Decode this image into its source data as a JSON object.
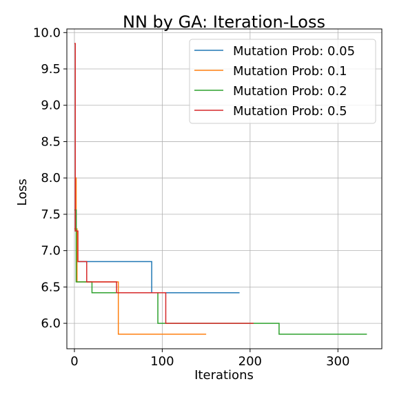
{
  "chart_data": {
    "type": "line",
    "title": "NN by GA: Iteration-Loss",
    "xlabel": "Iterations",
    "ylabel": "Loss",
    "xlim": [
      -8.6,
      350
    ],
    "ylim": [
      5.65,
      10.05
    ],
    "xticks": [
      0,
      100,
      200,
      300
    ],
    "xtick_labels": [
      "0",
      "100",
      "200",
      "300"
    ],
    "yticks": [
      6.0,
      6.5,
      7.0,
      7.5,
      8.0,
      8.5,
      9.0,
      9.5,
      10.0
    ],
    "ytick_labels": [
      "6.0",
      "6.5",
      "7.0",
      "7.5",
      "8.0",
      "8.5",
      "9.0",
      "9.5",
      "10.0"
    ],
    "grid": true,
    "legend_position": "top-right",
    "series": [
      {
        "name": "Mutation Prob: 0.05",
        "color": "#1f77b4",
        "x": [
          0,
          1,
          1,
          2,
          2,
          3,
          3,
          88,
          88,
          188
        ],
        "y": [
          7.3,
          7.3,
          7.56,
          7.56,
          7.27,
          7.27,
          6.85,
          6.85,
          6.42,
          6.42
        ]
      },
      {
        "name": "Mutation Prob: 0.1",
        "color": "#ff7f0e",
        "x": [
          0,
          1,
          1,
          2,
          2,
          3,
          3,
          50,
          50,
          150
        ],
        "y": [
          7.3,
          7.3,
          8.0,
          8.0,
          7.3,
          7.3,
          6.57,
          6.57,
          5.85,
          5.85
        ]
      },
      {
        "name": "Mutation Prob: 0.2",
        "color": "#2ca02c",
        "x": [
          0,
          2,
          2,
          20,
          20,
          95,
          95,
          233,
          233,
          333
        ],
        "y": [
          7.56,
          7.56,
          6.57,
          6.57,
          6.42,
          6.42,
          6.0,
          6.0,
          5.85,
          5.85
        ]
      },
      {
        "name": "Mutation Prob: 0.5",
        "color": "#d62728",
        "x": [
          0,
          1,
          1,
          4,
          4,
          14,
          14,
          48,
          48,
          104,
          104,
          204
        ],
        "y": [
          9.85,
          9.85,
          7.27,
          7.27,
          6.85,
          6.85,
          6.57,
          6.57,
          6.42,
          6.42,
          6.0,
          6.0
        ]
      }
    ]
  }
}
